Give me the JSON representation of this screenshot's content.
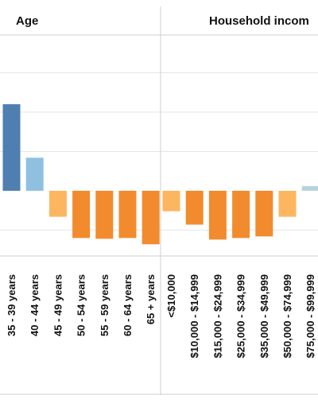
{
  "chart_data": {
    "type": "bar",
    "colors": {
      "positive_strong": "#4e7fb0",
      "positive_mid": "#8fc0e0",
      "positive_light": "#b9d3dd",
      "negative_light": "#fdb660",
      "negative_strong": "#f28b2d",
      "grid": "#e6e6e6",
      "divider": "#cfcfcf"
    },
    "panels": [
      {
        "header": "Age",
        "categories": [
          "35 - 39 years",
          "40 - 44 years",
          "45 - 49 years",
          "50 - 54 years",
          "55 - 59 years",
          "60 - 64 years",
          "65 + years"
        ],
        "values": [
          11.0,
          4.2,
          -3.3,
          -6.0,
          -6.1,
          -6.0,
          -6.8
        ]
      },
      {
        "header": "Household incom",
        "categories": [
          "<$10,000",
          "$10,000 - $14,999",
          "$15,000 - $24,999",
          "$25,000 - $34,999",
          "$35,000 - $49,999",
          "$50,000 - $74,999",
          "$75,000 - $99,999"
        ],
        "values": [
          -2.6,
          -4.3,
          -6.2,
          -6.0,
          -5.8,
          -3.3,
          0.6
        ]
      }
    ],
    "ylim": [
      -8,
      20
    ],
    "grid": true
  }
}
